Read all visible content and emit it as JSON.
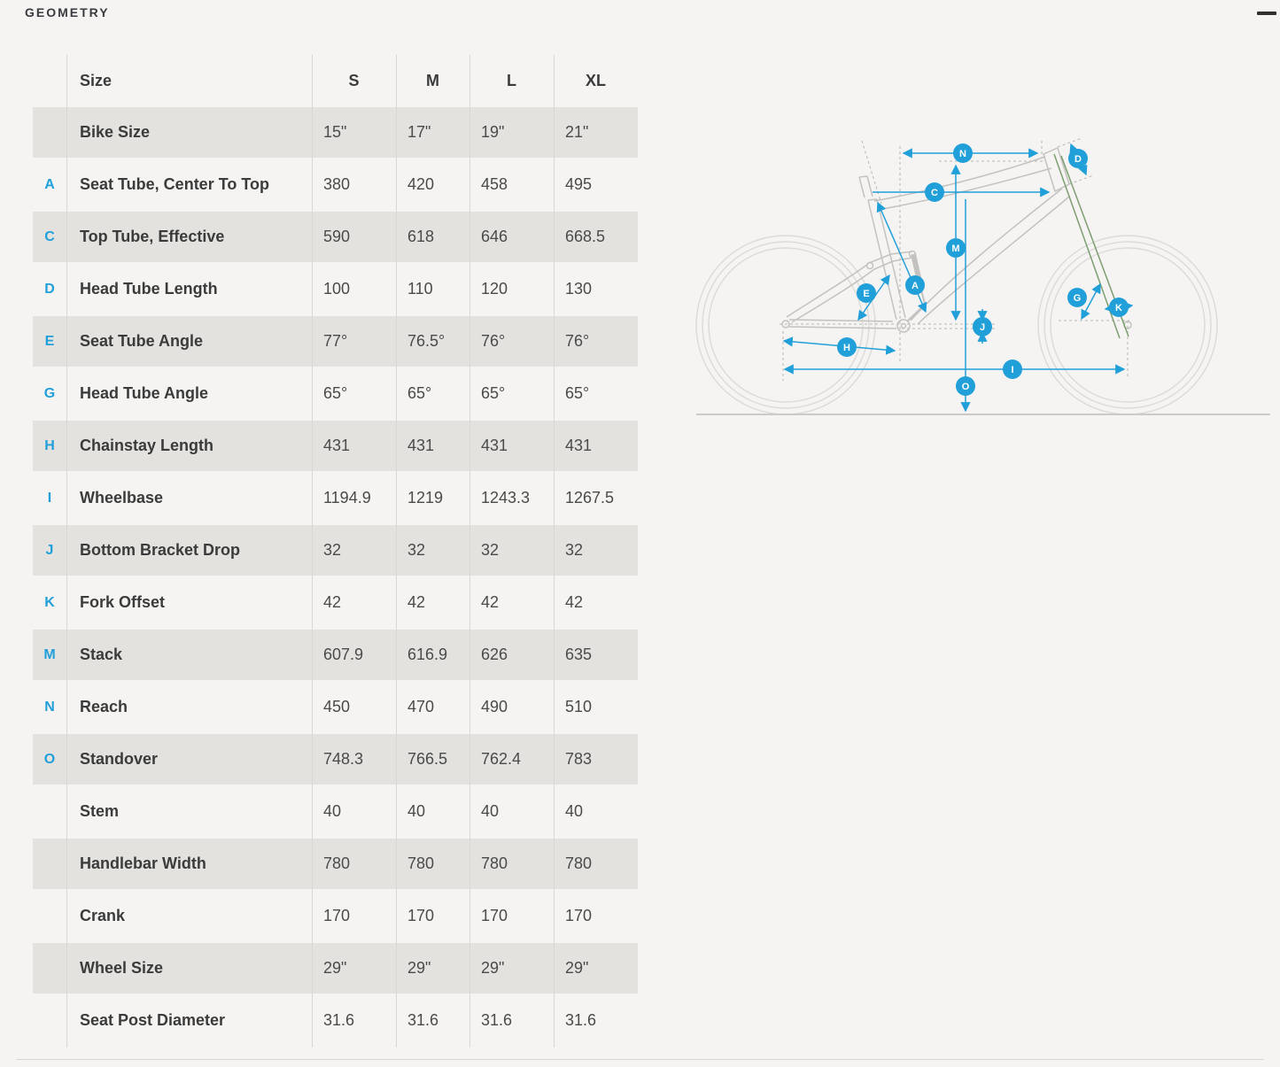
{
  "page": {
    "title": "GEOMETRY"
  },
  "toolbar": {
    "collapse_icon": "minus"
  },
  "table": {
    "size_label": "Size",
    "columns": [
      "S",
      "M",
      "L",
      "XL"
    ],
    "rows": [
      {
        "letter": "",
        "label": "Bike Size",
        "values": [
          "15\"",
          "17\"",
          "19\"",
          "21\""
        ]
      },
      {
        "letter": "A",
        "label": "Seat Tube, Center To Top",
        "values": [
          "380",
          "420",
          "458",
          "495"
        ]
      },
      {
        "letter": "C",
        "label": "Top Tube, Effective",
        "values": [
          "590",
          "618",
          "646",
          "668.5"
        ]
      },
      {
        "letter": "D",
        "label": "Head Tube Length",
        "values": [
          "100",
          "110",
          "120",
          "130"
        ]
      },
      {
        "letter": "E",
        "label": "Seat Tube Angle",
        "values": [
          "77°",
          "76.5°",
          "76°",
          "76°"
        ]
      },
      {
        "letter": "G",
        "label": "Head Tube Angle",
        "values": [
          "65°",
          "65°",
          "65°",
          "65°"
        ]
      },
      {
        "letter": "H",
        "label": "Chainstay Length",
        "values": [
          "431",
          "431",
          "431",
          "431"
        ]
      },
      {
        "letter": "I",
        "label": "Wheelbase",
        "values": [
          "1194.9",
          "1219",
          "1243.3",
          "1267.5"
        ]
      },
      {
        "letter": "J",
        "label": "Bottom Bracket Drop",
        "values": [
          "32",
          "32",
          "32",
          "32"
        ]
      },
      {
        "letter": "K",
        "label": "Fork Offset",
        "values": [
          "42",
          "42",
          "42",
          "42"
        ]
      },
      {
        "letter": "M",
        "label": "Stack",
        "values": [
          "607.9",
          "616.9",
          "626",
          "635"
        ]
      },
      {
        "letter": "N",
        "label": "Reach",
        "values": [
          "450",
          "470",
          "490",
          "510"
        ]
      },
      {
        "letter": "O",
        "label": "Standover",
        "values": [
          "748.3",
          "766.5",
          "762.4",
          "783"
        ]
      },
      {
        "letter": "",
        "label": "Stem",
        "values": [
          "40",
          "40",
          "40",
          "40"
        ]
      },
      {
        "letter": "",
        "label": "Handlebar Width",
        "values": [
          "780",
          "780",
          "780",
          "780"
        ]
      },
      {
        "letter": "",
        "label": "Crank",
        "values": [
          "170",
          "170",
          "170",
          "170"
        ]
      },
      {
        "letter": "",
        "label": "Wheel Size",
        "values": [
          "29\"",
          "29\"",
          "29\"",
          "29\""
        ]
      },
      {
        "letter": "",
        "label": "Seat Post Diameter",
        "values": [
          "31.6",
          "31.6",
          "31.6",
          "31.6"
        ]
      }
    ]
  },
  "diagram": {
    "type": "bike-geometry-diagram",
    "markers": [
      "A",
      "C",
      "D",
      "E",
      "G",
      "H",
      "I",
      "J",
      "K",
      "M",
      "N",
      "O"
    ]
  },
  "colors": {
    "accent": "#219fd9",
    "page_background": "#f5f4f2",
    "row_stripe": "#e3e2df",
    "fork_axis_line": "#7d9e71",
    "frame_line": "#c3c2bf"
  }
}
